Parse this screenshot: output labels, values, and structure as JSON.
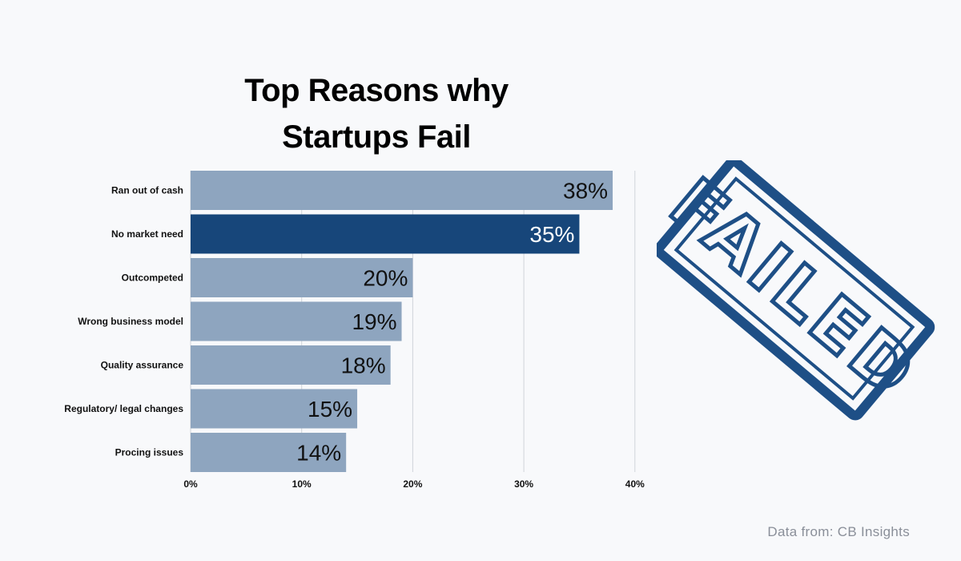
{
  "title_line1": "Top Reasons why",
  "title_line2": "Startups Fail",
  "source": "Data from: CB Insights",
  "stamp_text": "FAILED",
  "colors": {
    "bar": "#8ea5bf",
    "bar_highlight": "#17467a",
    "stamp": "#1e4f86",
    "grid": "#d0d4da"
  },
  "chart_data": {
    "type": "bar",
    "orientation": "horizontal",
    "categories": [
      "Ran out of cash",
      "No market need",
      "Outcompeted",
      "Wrong business model",
      "Quality assurance",
      "Regulatory/ legal changes",
      "Procing issues"
    ],
    "values": [
      38,
      35,
      20,
      19,
      18,
      15,
      14
    ],
    "value_labels": [
      "38%",
      "35%",
      "20%",
      "19%",
      "18%",
      "15%",
      "14%"
    ],
    "highlight_index": 1,
    "xlim": [
      0,
      40
    ],
    "xticks": [
      0,
      10,
      20,
      30,
      40
    ],
    "xtick_labels": [
      "0%",
      "10%",
      "20%",
      "30%",
      "40%"
    ],
    "grid": true,
    "xlabel": "",
    "ylabel": ""
  }
}
